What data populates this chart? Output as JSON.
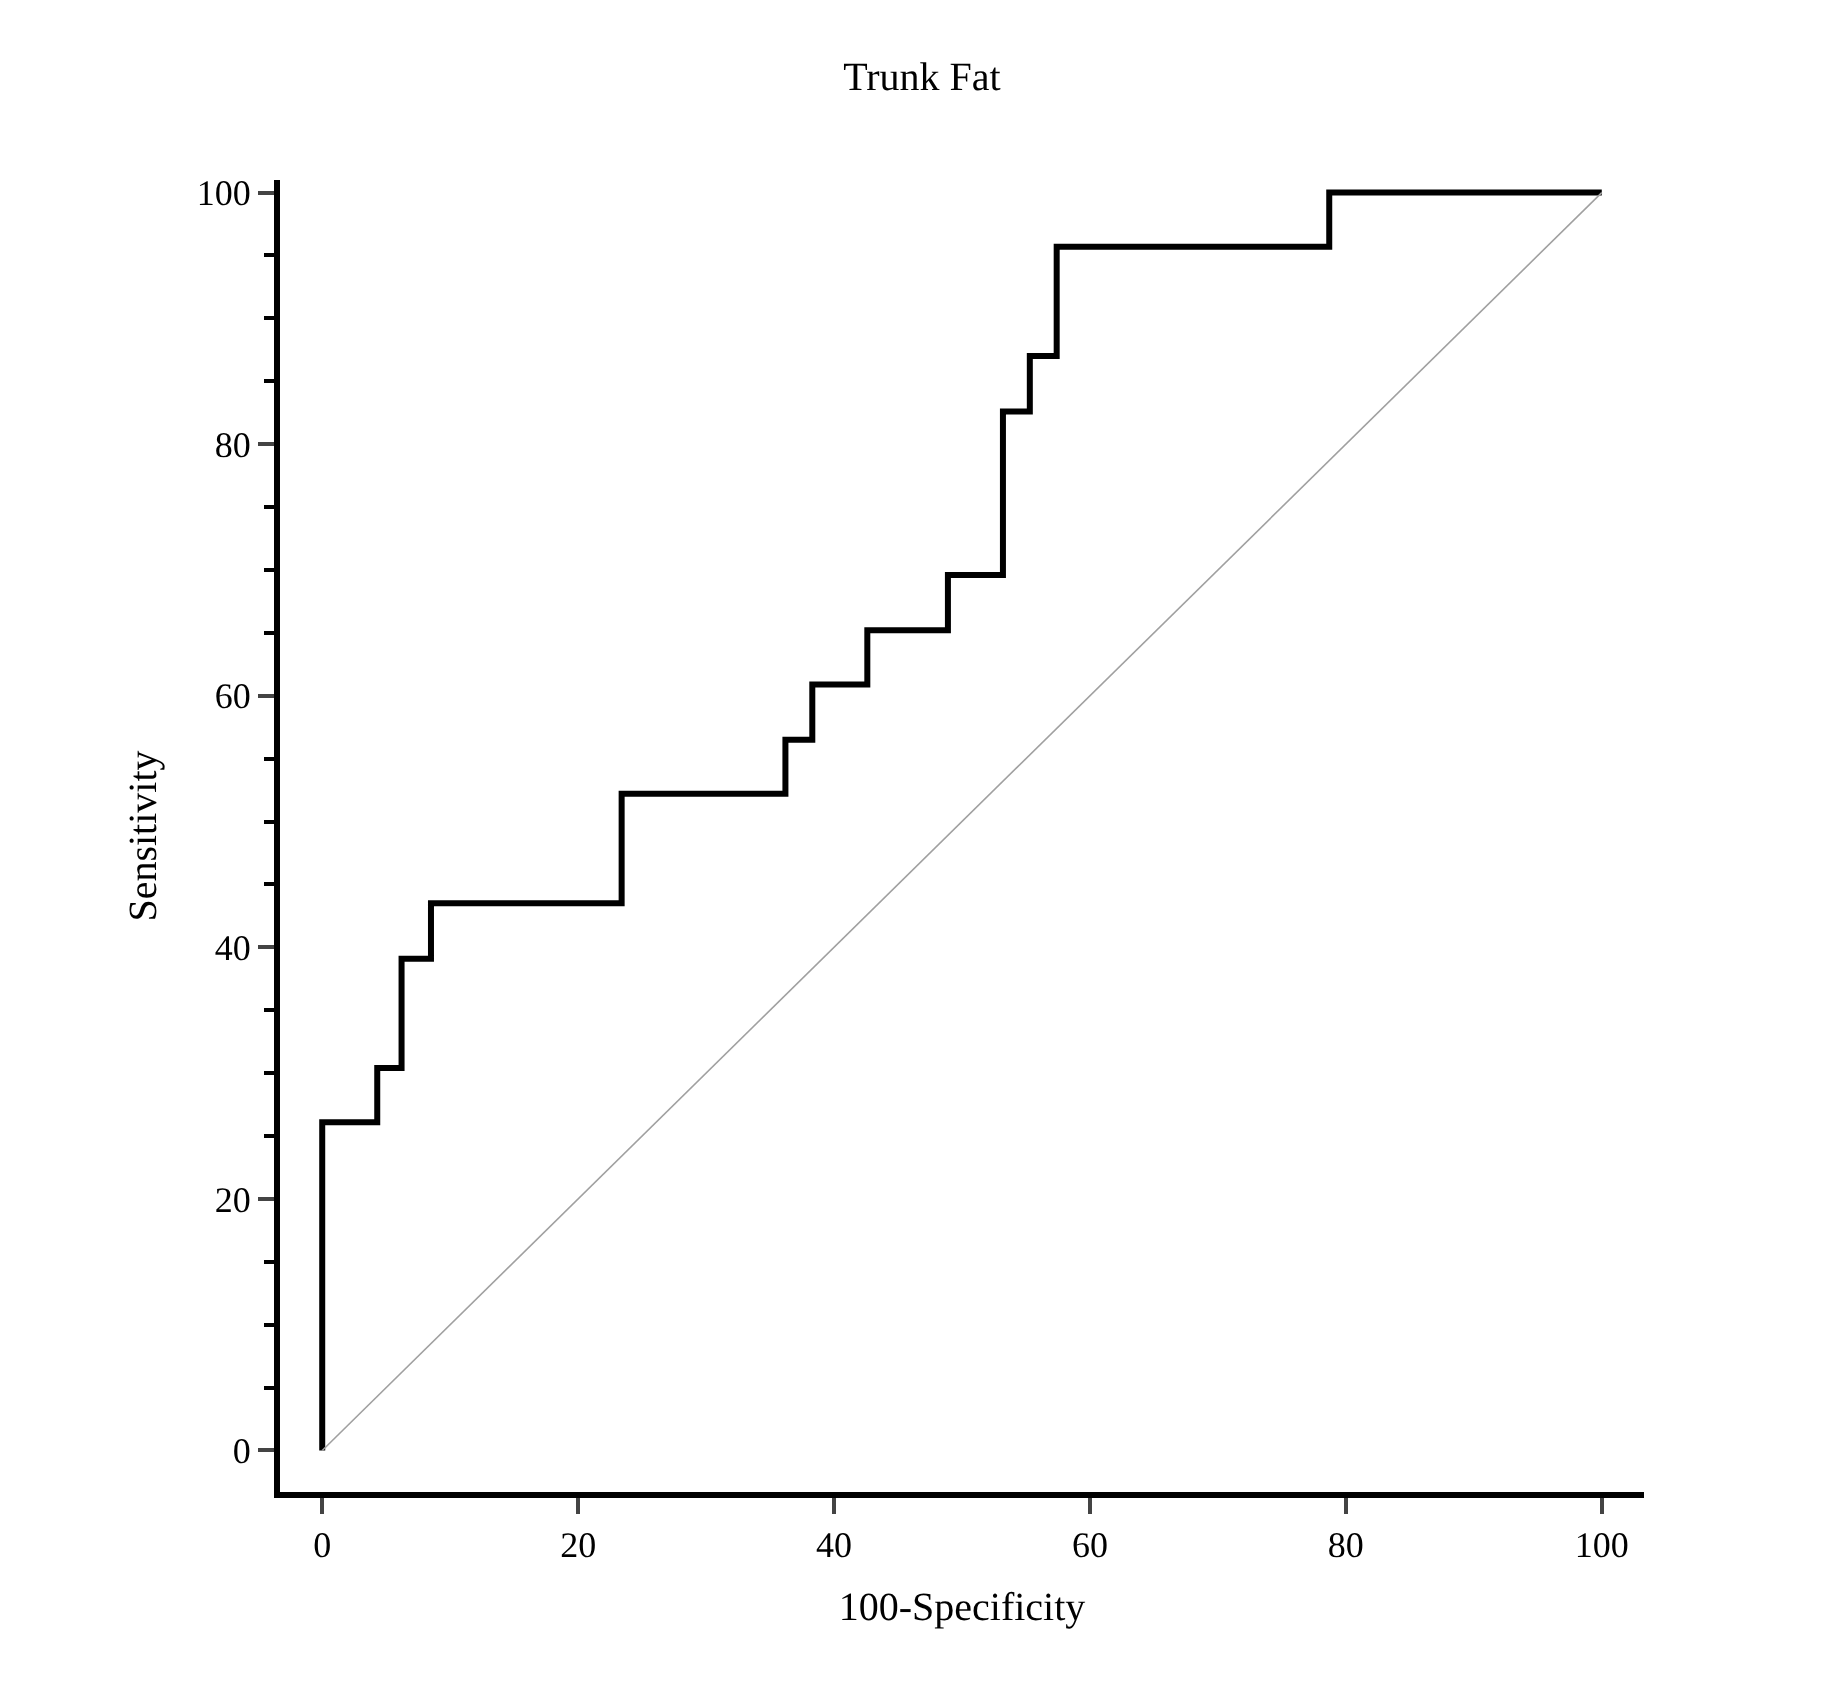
{
  "chart_data": {
    "type": "step",
    "title": "Trunk Fat",
    "xlabel": "100-Specificity",
    "ylabel": "Sensitivity",
    "series": [
      {
        "color": "#000000",
        "x": [
          0,
          0,
          4.3,
          6.2,
          8.5,
          23.4,
          36.2,
          38.3,
          42.6,
          48.9,
          53.2,
          55.3,
          57.4,
          78.7,
          100
        ],
        "values": [
          0,
          26.1,
          30.4,
          39.1,
          43.5,
          52.2,
          56.5,
          60.9,
          65.2,
          69.6,
          82.6,
          87.0,
          95.7,
          100,
          100
        ]
      },
      {
        "type": "line",
        "color": "#a0a0a0",
        "x": [
          0,
          100
        ],
        "values": [
          0,
          100
        ]
      }
    ],
    "xlim": [
      -3.3,
      103.3
    ],
    "ylim": [
      -3.3,
      101
    ],
    "xticks": [
      0,
      20,
      40,
      60,
      80,
      100
    ],
    "yticks": [
      0,
      20,
      40,
      60,
      80,
      100
    ],
    "marker": "none"
  }
}
